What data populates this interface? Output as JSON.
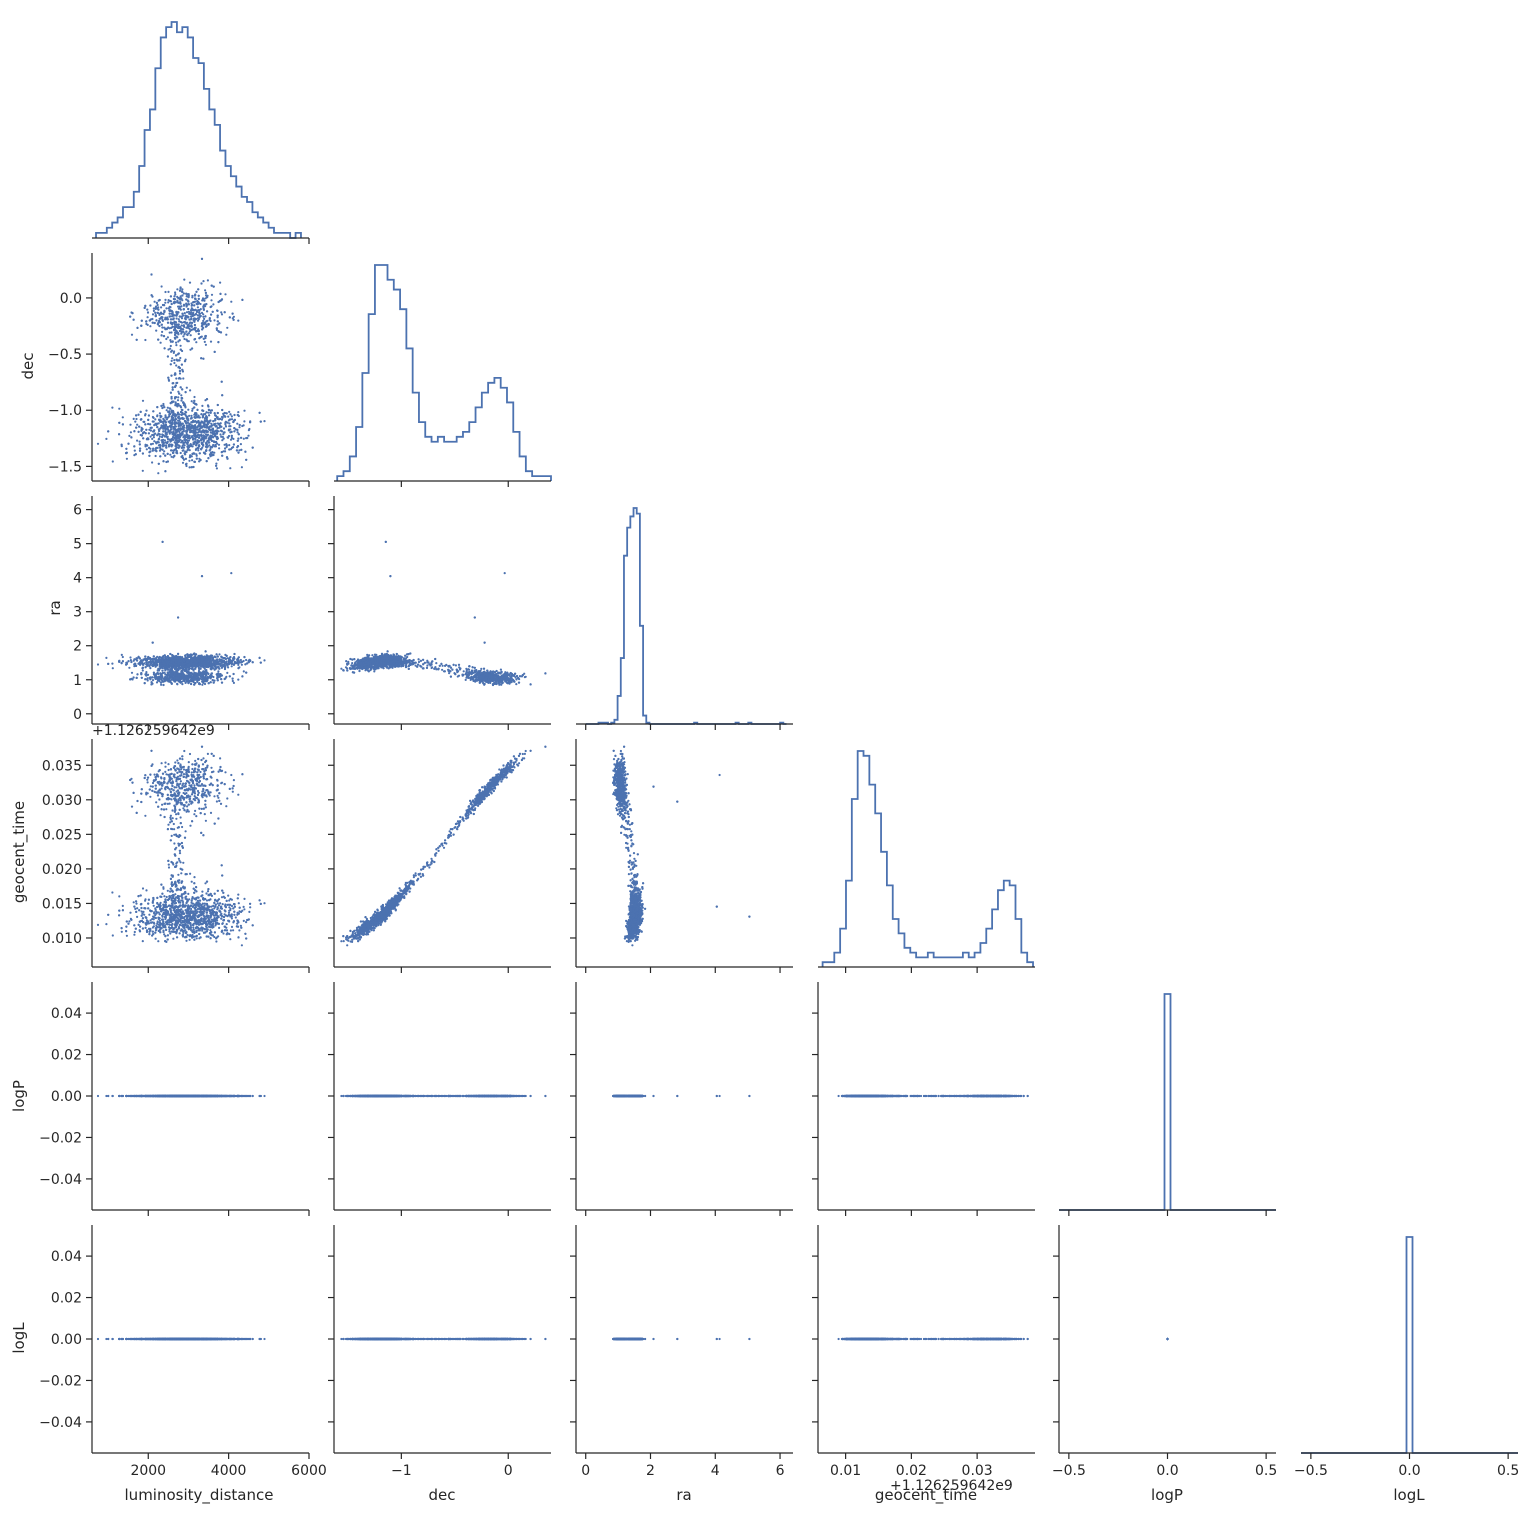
{
  "chart_data": {
    "type": "scatter",
    "figure_kind": "corner pairplot with step histograms on diagonal",
    "colors": {
      "series": "#4c72b0",
      "axis": "#262626",
      "background": "#ffffff"
    },
    "variables": [
      {
        "label": "luminosity_distance",
        "lim": [
          600,
          6000
        ],
        "ticks": [
          2000,
          4000,
          6000
        ],
        "tick_labels": [
          "2000",
          "4000",
          "6000"
        ]
      },
      {
        "label": "dec",
        "lim": [
          -1.63,
          0.4
        ],
        "ticks": [
          -1.5,
          -1.0,
          -0.5,
          0.0
        ],
        "tick_labels": [
          "−1.5",
          "−1.0",
          "−0.5",
          "0.0"
        ],
        "x_ticks": [
          -1,
          0
        ],
        "x_tick_labels": [
          "−1",
          "0"
        ]
      },
      {
        "label": "ra",
        "lim": [
          -0.3,
          6.4
        ],
        "ticks": [
          0,
          1,
          2,
          3,
          4,
          5,
          6
        ],
        "tick_labels": [
          "0",
          "1",
          "2",
          "3",
          "4",
          "5",
          "6"
        ],
        "x_ticks": [
          0,
          2,
          4,
          6
        ],
        "x_tick_labels": [
          "0",
          "2",
          "4",
          "6"
        ]
      },
      {
        "label": "geocent_time",
        "lim": [
          0.0058,
          0.0388
        ],
        "ticks": [
          0.01,
          0.015,
          0.02,
          0.025,
          0.03,
          0.035
        ],
        "tick_labels": [
          "0.010",
          "0.015",
          "0.020",
          "0.025",
          "0.030",
          "0.035"
        ],
        "x_ticks": [
          0.01,
          0.02,
          0.03
        ],
        "x_tick_labels": [
          "0.01",
          "0.02",
          "0.03"
        ],
        "offset": "+1.126259642e9"
      },
      {
        "label": "logP",
        "lim": [
          -0.055,
          0.055
        ],
        "ticks": [
          -0.04,
          -0.02,
          0.0,
          0.02,
          0.04
        ],
        "tick_labels": [
          "−0.04",
          "−0.02",
          "0.00",
          "0.02",
          "0.04"
        ],
        "x_ticks": [
          -0.5,
          0.0,
          0.5
        ],
        "x_tick_labels": [
          "−0.5",
          "0.0",
          "0.5"
        ],
        "x_lim": [
          -0.55,
          0.55
        ]
      },
      {
        "label": "logL",
        "lim": [
          -0.055,
          0.055
        ],
        "ticks": [
          -0.04,
          -0.02,
          0.0,
          0.02,
          0.04
        ],
        "tick_labels": [
          "−0.04",
          "−0.02",
          "0.00",
          "0.02",
          "0.04"
        ],
        "x_ticks": [
          -0.5,
          0.0,
          0.5
        ],
        "x_tick_labels": [
          "−0.5",
          "0.0",
          "0.5"
        ],
        "x_lim": [
          -0.55,
          0.55
        ]
      }
    ],
    "histograms": {
      "luminosity_distance": {
        "edges_range": [
          700,
          5800
        ],
        "counts": [
          1,
          1,
          2,
          3,
          4,
          6,
          6,
          9,
          14,
          21,
          25,
          33,
          39,
          41,
          42,
          40,
          41,
          39,
          35,
          34,
          29,
          25,
          22,
          17,
          14,
          12,
          10,
          8,
          7,
          5,
          4,
          3,
          2,
          1,
          1,
          1,
          0,
          1
        ]
      },
      "dec": {
        "edges_range": [
          -1.6,
          0.4
        ],
        "counts": [
          1,
          2,
          5,
          11,
          22,
          34,
          44,
          44,
          41,
          39,
          35,
          27,
          18,
          12,
          9,
          8,
          9,
          8,
          8,
          9,
          10,
          12,
          15,
          18,
          20,
          21,
          19,
          16,
          10,
          5,
          2,
          1,
          1,
          1
        ]
      },
      "ra": {
        "edges_range": [
          0,
          6.2
        ],
        "counts": [
          0,
          0,
          0,
          0,
          1,
          1,
          1,
          0,
          1,
          3,
          20,
          47,
          120,
          140,
          148,
          154,
          150,
          70,
          6,
          1,
          0,
          0,
          0,
          0,
          0,
          0,
          0,
          0,
          0,
          0,
          0,
          0,
          0,
          0,
          1,
          0,
          0,
          0,
          0,
          0,
          0,
          0,
          0,
          0,
          0,
          0,
          0,
          1,
          0,
          0,
          0,
          1,
          0,
          0,
          0,
          0,
          0,
          0,
          0,
          0,
          0,
          1,
          0
        ]
      },
      "geocent_time": {
        "edges_range": [
          0.0065,
          0.0385
        ],
        "counts": [
          1,
          1,
          3,
          8,
          18,
          35,
          45,
          44,
          38,
          32,
          24,
          17,
          10,
          7,
          4,
          3,
          2,
          2,
          3,
          2,
          2,
          2,
          2,
          2,
          3,
          2,
          3,
          5,
          8,
          12,
          16,
          18,
          17,
          10,
          3,
          1
        ]
      },
      "logP": {
        "spike_value": 0.0,
        "spike_height": 1
      },
      "logL": {
        "spike_value": 0.0,
        "spike_height": 1
      }
    },
    "scatter_structure": {
      "luminosity_distance_vs_dec": "two clusters: dense band near dec ≈ −1.2 spanning 800–5500, and cluster near dec ≈ −0.1 spanning 2000–5000, connected by a thin bridge near 2700",
      "dec_vs_geocent_time": "tight monotonic band from (−1.55, 0.008) to (0.4, 0.038)",
      "ra_values": "concentrated around 1.0–1.7 with a few outliers between 2 and 6",
      "logP_and_logL": "constant 0.0"
    }
  }
}
